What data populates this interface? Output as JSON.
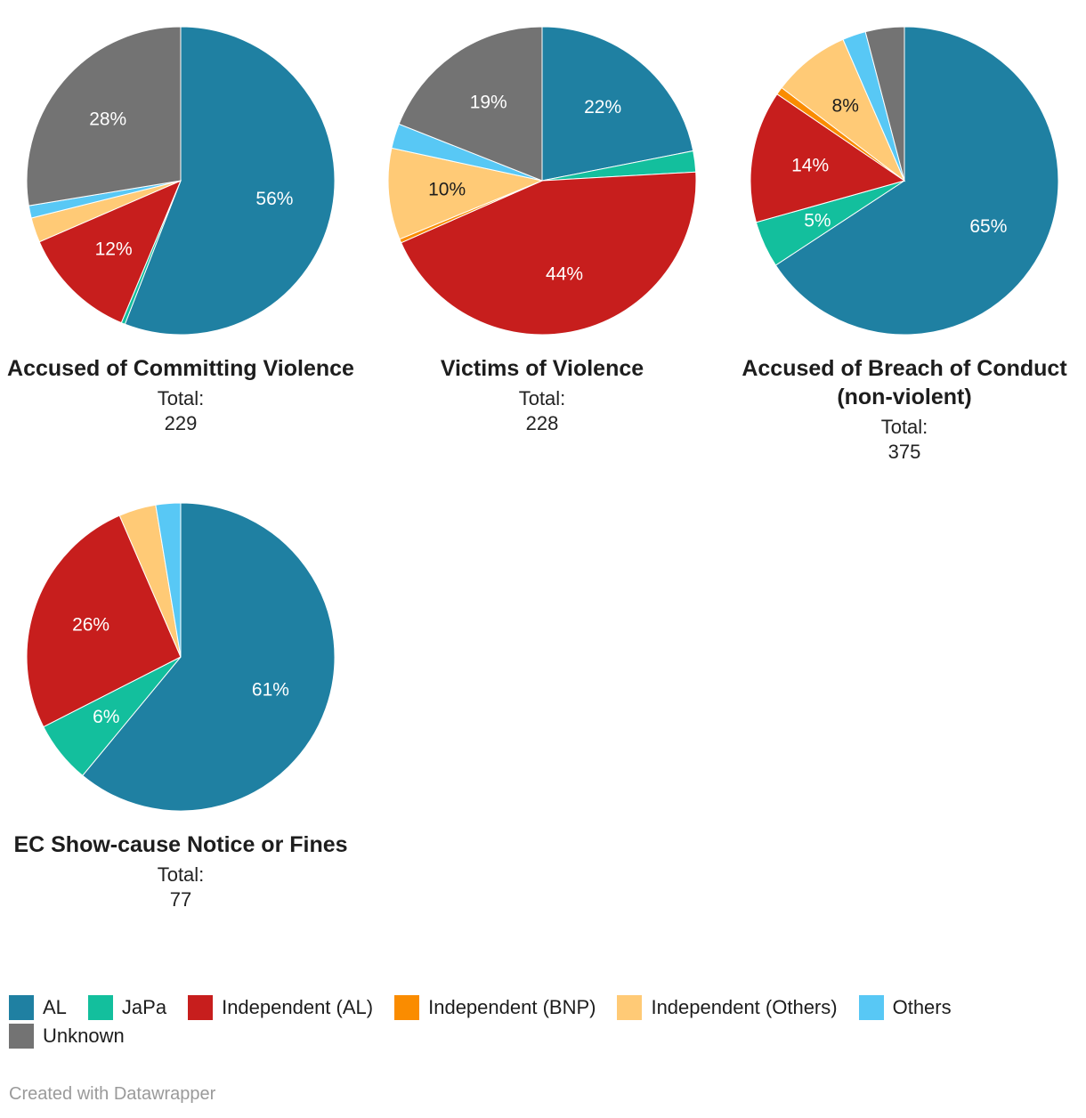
{
  "legend": [
    {
      "name": "AL",
      "color": "#1f80a2"
    },
    {
      "name": "JaPa",
      "color": "#13bf9d"
    },
    {
      "name": "Independent (AL)",
      "color": "#c71e1d"
    },
    {
      "name": "Independent (BNP)",
      "color": "#fa8c00"
    },
    {
      "name": "Independent (Others)",
      "color": "#ffca76"
    },
    {
      "name": "Others",
      "color": "#58c8f5"
    },
    {
      "name": "Unknown",
      "color": "#737373"
    }
  ],
  "chart_data": [
    {
      "type": "pie",
      "title": "Accused of Committing Violence",
      "total_label": "Total:",
      "total": "229",
      "categories": [
        "AL",
        "JaPa",
        "Independent (AL)",
        "Independent (BNP)",
        "Independent (Others)",
        "Others",
        "Unknown"
      ],
      "values": [
        55.9,
        0.4,
        12.2,
        0,
        2.6,
        1.3,
        27.6
      ],
      "labels": [
        "56%",
        "",
        "12%",
        "",
        "",
        "",
        "28%"
      ]
    },
    {
      "type": "pie",
      "title": "Victims of Violence",
      "total_label": "Total:",
      "total": "228",
      "categories": [
        "AL",
        "JaPa",
        "Independent (AL)",
        "Independent (BNP)",
        "Independent (Others)",
        "Others",
        "Unknown"
      ],
      "values": [
        21.9,
        2.2,
        44.3,
        0.4,
        9.6,
        2.6,
        19.0
      ],
      "labels": [
        "22%",
        "",
        "44%",
        "",
        "10%",
        "",
        "19%"
      ]
    },
    {
      "type": "pie",
      "title": "Accused of Breach of Conduct (non-violent)",
      "total_label": "Total:",
      "total": "375",
      "categories": [
        "AL",
        "JaPa",
        "Independent (AL)",
        "Independent (BNP)",
        "Independent (Others)",
        "Others",
        "Unknown"
      ],
      "values": [
        64.5,
        4.8,
        13.6,
        0.8,
        8.0,
        2.4,
        4.0
      ],
      "labels": [
        "65%",
        "5%",
        "14%",
        "",
        "8%",
        "",
        ""
      ]
    },
    {
      "type": "pie",
      "title": "EC Show-cause Notice or Fines",
      "total_label": "Total:",
      "total": "77",
      "categories": [
        "AL",
        "JaPa",
        "Independent (AL)",
        "Independent (BNP)",
        "Independent (Others)",
        "Others",
        "Unknown"
      ],
      "values": [
        61.0,
        6.5,
        26.0,
        0,
        3.9,
        2.6,
        0
      ],
      "labels": [
        "61%",
        "6%",
        "26%",
        "",
        "",
        "",
        ""
      ]
    }
  ],
  "footer": {
    "credit": "Created with Datawrapper"
  }
}
